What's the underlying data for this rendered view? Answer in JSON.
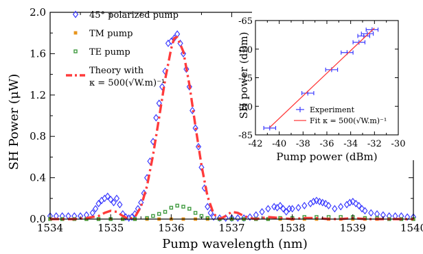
{
  "chart_data": [
    {
      "type": "scatter",
      "xlabel": "Pump wavelength (nm)",
      "ylabel": "SH Power (μW)",
      "xlim": [
        1534,
        1540
      ],
      "ylim": [
        0,
        2.0
      ],
      "xticks": [
        1534,
        1535,
        1536,
        1537,
        1538,
        1539,
        1540
      ],
      "xtick_labels": [
        "1534",
        "1535",
        "1536",
        "1537",
        "1538",
        "1539",
        "1540"
      ],
      "yticks": [
        0.0,
        0.4,
        0.8,
        1.2,
        1.6,
        2.0
      ],
      "ytick_labels": [
        "0.0",
        "0.4",
        "0.8",
        "1.2",
        "1.6",
        "2.0"
      ],
      "legend_position": "top-left",
      "series": [
        {
          "name": "45° polarized pump",
          "marker": "diamond-open",
          "color": "#3b3bff",
          "x": [
            1534.0,
            1534.1,
            1534.2,
            1534.3,
            1534.4,
            1534.5,
            1534.6,
            1534.7,
            1534.75,
            1534.8,
            1534.85,
            1534.9,
            1534.95,
            1535.0,
            1535.05,
            1535.1,
            1535.15,
            1535.2,
            1535.25,
            1535.3,
            1535.35,
            1535.4,
            1535.45,
            1535.5,
            1535.55,
            1535.6,
            1535.65,
            1535.7,
            1535.75,
            1535.8,
            1535.85,
            1535.9,
            1535.95,
            1536.0,
            1536.05,
            1536.1,
            1536.15,
            1536.2,
            1536.25,
            1536.3,
            1536.35,
            1536.4,
            1536.45,
            1536.5,
            1536.55,
            1536.6,
            1536.65,
            1536.7,
            1536.8,
            1536.9,
            1537.0,
            1537.1,
            1537.2,
            1537.3,
            1537.4,
            1537.5,
            1537.6,
            1537.7,
            1537.75,
            1537.8,
            1537.85,
            1537.9,
            1537.95,
            1538.0,
            1538.1,
            1538.2,
            1538.3,
            1538.35,
            1538.4,
            1538.45,
            1538.5,
            1538.55,
            1538.6,
            1538.7,
            1538.8,
            1538.9,
            1538.95,
            1539.0,
            1539.05,
            1539.1,
            1539.15,
            1539.2,
            1539.3,
            1539.4,
            1539.5,
            1539.6,
            1539.7,
            1539.8,
            1539.9,
            1540.0
          ],
          "y": [
            0.03,
            0.03,
            0.03,
            0.03,
            0.03,
            0.03,
            0.04,
            0.06,
            0.1,
            0.15,
            0.18,
            0.2,
            0.22,
            0.19,
            0.16,
            0.2,
            0.14,
            0.05,
            0.02,
            0.01,
            0.02,
            0.05,
            0.1,
            0.16,
            0.25,
            0.4,
            0.56,
            0.75,
            0.98,
            1.12,
            1.28,
            1.43,
            1.7,
            1.72,
            1.75,
            1.79,
            1.7,
            1.6,
            1.45,
            1.28,
            1.05,
            0.88,
            0.7,
            0.5,
            0.3,
            0.12,
            0.06,
            0.02,
            0.01,
            0.01,
            0.01,
            0.01,
            0.01,
            0.02,
            0.04,
            0.07,
            0.1,
            0.12,
            0.11,
            0.13,
            0.1,
            0.07,
            0.1,
            0.1,
            0.11,
            0.13,
            0.15,
            0.17,
            0.18,
            0.17,
            0.16,
            0.15,
            0.13,
            0.1,
            0.12,
            0.14,
            0.16,
            0.17,
            0.15,
            0.13,
            0.1,
            0.08,
            0.06,
            0.05,
            0.04,
            0.03,
            0.03,
            0.03,
            0.02,
            0.02
          ]
        },
        {
          "name": "TM pump",
          "marker": "square-filled",
          "color": "#e8951c",
          "x": [
            1534.0,
            1534.2,
            1534.4,
            1534.6,
            1534.8,
            1535.0,
            1535.2,
            1535.4,
            1535.6,
            1535.8,
            1536.0,
            1536.2,
            1536.4,
            1536.6,
            1536.8,
            1537.0,
            1537.2,
            1537.4,
            1537.6,
            1537.8,
            1538.0,
            1538.2,
            1538.4,
            1538.6,
            1538.8,
            1539.0,
            1539.2,
            1539.4,
            1539.6,
            1539.8,
            1540.0
          ],
          "y": [
            0,
            0,
            0,
            0,
            0,
            0,
            0,
            0,
            0,
            0,
            0,
            0,
            0,
            0,
            0,
            0,
            0,
            0,
            0,
            0,
            0,
            0,
            0,
            0,
            0,
            0,
            0,
            0,
            0,
            0,
            0
          ]
        },
        {
          "name": "TE pump",
          "marker": "square-open",
          "color": "#3f9a3f",
          "x": [
            1534.0,
            1534.2,
            1534.4,
            1534.6,
            1534.8,
            1535.0,
            1535.2,
            1535.4,
            1535.6,
            1535.7,
            1535.8,
            1535.9,
            1536.0,
            1536.1,
            1536.2,
            1536.3,
            1536.4,
            1536.5,
            1536.6,
            1536.8,
            1537.0,
            1537.2,
            1537.4,
            1537.6,
            1537.8,
            1538.0,
            1538.2,
            1538.4,
            1538.6,
            1538.8,
            1539.0,
            1539.2,
            1539.4,
            1539.6,
            1539.8,
            1540.0
          ],
          "y": [
            0,
            0,
            0,
            0,
            0,
            0,
            0,
            0,
            0.01,
            0.03,
            0.05,
            0.07,
            0.11,
            0.13,
            0.12,
            0.1,
            0.06,
            0.03,
            0.01,
            0,
            0,
            0,
            0,
            0,
            0.01,
            0.01,
            0.02,
            0.02,
            0.02,
            0.02,
            0.02,
            0.01,
            0.01,
            0,
            0,
            0
          ]
        },
        {
          "name": "Theory with κ = 500(√W.m)⁻¹",
          "name_line1": "Theory with",
          "name_line2": "κ = 500(√W.m)⁻¹",
          "marker": "none",
          "line_style": "dash-dot",
          "color": "#ff3b3b",
          "x": [
            1534.0,
            1534.2,
            1534.4,
            1534.6,
            1534.8,
            1534.9,
            1535.0,
            1535.1,
            1535.2,
            1535.3,
            1535.4,
            1535.5,
            1535.6,
            1535.7,
            1535.8,
            1535.9,
            1536.0,
            1536.05,
            1536.1,
            1536.2,
            1536.3,
            1536.4,
            1536.5,
            1536.6,
            1536.7,
            1536.8,
            1536.9,
            1537.0,
            1537.1,
            1537.2,
            1537.3,
            1537.4,
            1537.5,
            1537.6,
            1537.8,
            1538.0,
            1538.2,
            1538.4,
            1538.6,
            1538.8,
            1539.0,
            1539.2,
            1539.4,
            1539.6,
            1539.8,
            1540.0
          ],
          "y": [
            0.0,
            0.0,
            0.0,
            0.01,
            0.03,
            0.06,
            0.08,
            0.07,
            0.03,
            0.0,
            0.02,
            0.12,
            0.32,
            0.62,
            0.98,
            1.35,
            1.65,
            1.75,
            1.76,
            1.62,
            1.3,
            0.9,
            0.52,
            0.22,
            0.05,
            0.0,
            0.03,
            0.07,
            0.06,
            0.03,
            0.01,
            0.0,
            0.01,
            0.02,
            0.01,
            0.0,
            0.01,
            0.01,
            0.0,
            0.0,
            0.01,
            0.0,
            0.0,
            0.0,
            0.0,
            0.0
          ]
        }
      ]
    },
    {
      "type": "scatter",
      "xlabel": "Pump power (dBm)",
      "ylabel": "SH power (dBm)",
      "xlim": [
        -42,
        -30
      ],
      "ylim": [
        -85,
        -65
      ],
      "xticks": [
        -42,
        -40,
        -38,
        -36,
        -34,
        -32,
        -30
      ],
      "xtick_labels": [
        "-42",
        "-40",
        "-38",
        "-36",
        "-34",
        "-32",
        "-30"
      ],
      "yticks": [
        -85,
        -80,
        -75,
        -70,
        -65
      ],
      "ytick_labels": [
        "-85",
        "-80",
        "-75",
        "-70",
        "-65"
      ],
      "legend_position": "bottom-right",
      "series": [
        {
          "name": "Experiment",
          "marker": "cross-errorbar",
          "color": "#3b3bff",
          "x": [
            -40.8,
            -37.6,
            -35.6,
            -34.3,
            -33.3,
            -32.9,
            -32.6,
            -32.2
          ],
          "y": [
            -83.8,
            -77.7,
            -73.6,
            -70.6,
            -68.8,
            -67.7,
            -67.3,
            -66.6
          ],
          "xerr": [
            0.5,
            0.5,
            0.5,
            0.5,
            0.5,
            0.5,
            0.5,
            0.5
          ]
        },
        {
          "name": "Fit κ = 500(√W.m)⁻¹",
          "marker": "none",
          "line_style": "solid",
          "color": "#ff3b3b",
          "x": [
            -40.8,
            -32.0
          ],
          "y": [
            -83.7,
            -66.3
          ]
        }
      ]
    }
  ]
}
